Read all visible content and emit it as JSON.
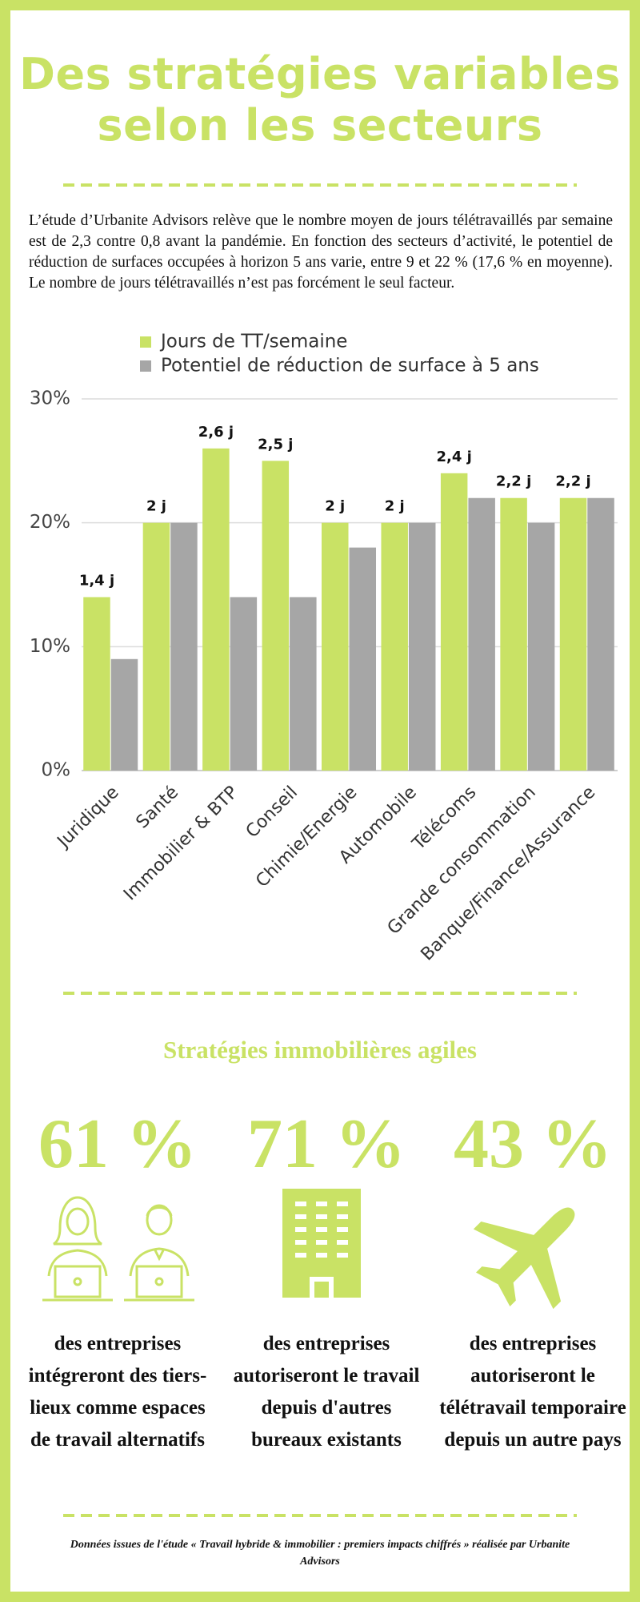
{
  "title": "Des stratégies variables selon les secteurs",
  "intro": "L’étude d’Urbanite Advisors relève que le nombre moyen de jours télétravaillés par semaine est de 2,3 contre 0,8 avant la pandémie. En fonction des secteurs d’activité, le potentiel de réduction de surfaces occupées à horizon 5 ans varie, entre 9 et 22 % (17,6 % en moyenne). Le nombre de jours télétravaillés n’est pas forcément le seul facteur.",
  "chart_data": {
    "type": "bar",
    "categories": [
      "Juridique",
      "Santé",
      "Immobilier & BTP",
      "Conseil",
      "Chimie/Energie",
      "Automobile",
      "Télécoms",
      "Grande consommation",
      "Banque/Finance/Assurance"
    ],
    "series": [
      {
        "name": "Jours de TT/semaine",
        "color": "#c9e265",
        "values": [
          14,
          20,
          26,
          25,
          20,
          20,
          24,
          22,
          22
        ],
        "value_labels": [
          "1,4 j",
          "2 j",
          "2,6 j",
          "2,5 j",
          "2 j",
          "2 j",
          "2,4 j",
          "2,2 j",
          "2,2 j"
        ]
      },
      {
        "name": "Potentiel de réduction de surface à 5 ans",
        "color": "#a6a6a6",
        "values": [
          9,
          20,
          14,
          14,
          18,
          20,
          22,
          20,
          22
        ]
      }
    ],
    "ylim": [
      0,
      30
    ],
    "yticks": [
      {
        "value": 0,
        "label": "0%"
      },
      {
        "value": 10,
        "label": "10%"
      },
      {
        "value": 20,
        "label": "20%"
      },
      {
        "value": 30,
        "label": "30%"
      }
    ],
    "grid": true,
    "legend": "top"
  },
  "section": {
    "title": "Stratégies immobilières agiles",
    "stats": [
      {
        "figure": "61 %",
        "text": "des entreprises intégreront des tiers-lieux comme espaces de travail alternatifs"
      },
      {
        "figure": "71 %",
        "text": "des entreprises autoriseront le travail depuis d'autres bureaux existants"
      },
      {
        "figure": "43 %",
        "text": "des entreprises autoriseront le télétravail temporaire depuis un autre pays"
      }
    ]
  },
  "footer": "Données issues de l'étude « Travail hybride & immobilier : premiers impacts chiffrés » réalisée par Urbanite Advisors"
}
